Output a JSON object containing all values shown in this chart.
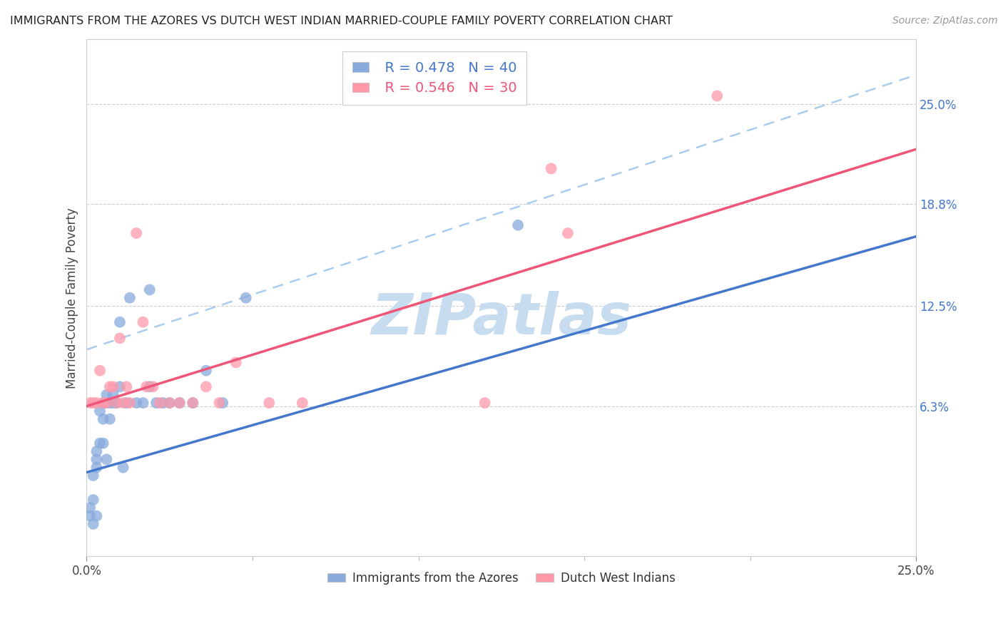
{
  "title": "IMMIGRANTS FROM THE AZORES VS DUTCH WEST INDIAN MARRIED-COUPLE FAMILY POVERTY CORRELATION CHART",
  "source": "Source: ZipAtlas.com",
  "ylabel": "Married-Couple Family Poverty",
  "xlim": [
    0,
    0.25
  ],
  "ylim": [
    -0.03,
    0.29
  ],
  "yticks": [
    0.063,
    0.125,
    0.188,
    0.25
  ],
  "ytick_labels": [
    "6.3%",
    "12.5%",
    "18.8%",
    "25.0%"
  ],
  "xtick_vals": [
    0.0,
    0.25
  ],
  "xtick_minor_vals": [
    0.05,
    0.1,
    0.15,
    0.2
  ],
  "xtick_labels": [
    "0.0%",
    "25.0%"
  ],
  "legend_blue_r": "R = 0.478",
  "legend_blue_n": "N = 40",
  "legend_pink_r": "R = 0.546",
  "legend_pink_n": "N = 30",
  "blue_scatter_color": "#88AADD",
  "pink_scatter_color": "#FF99AA",
  "blue_line_color": "#4477CC",
  "pink_line_color": "#EE5577",
  "dash_line_color": "#AACCEE",
  "watermark": "ZIPatlas",
  "watermark_color": "#C8DCF0",
  "blue_line_x0": 0.0,
  "blue_line_y0": 0.022,
  "blue_line_x1": 0.25,
  "blue_line_y1": 0.168,
  "pink_line_x0": 0.0,
  "pink_line_y0": 0.063,
  "pink_line_x1": 0.25,
  "pink_line_y1": 0.222,
  "dash_line_x0": 0.0,
  "dash_line_y0": 0.098,
  "dash_line_x1": 0.25,
  "dash_line_y1": 0.268,
  "label1": "Immigrants from the Azores",
  "label2": "Dutch West Indians",
  "blue_x": [
    0.001,
    0.001,
    0.002,
    0.002,
    0.002,
    0.003,
    0.003,
    0.003,
    0.003,
    0.004,
    0.004,
    0.005,
    0.005,
    0.005,
    0.006,
    0.006,
    0.006,
    0.007,
    0.007,
    0.008,
    0.008,
    0.009,
    0.01,
    0.01,
    0.011,
    0.012,
    0.013,
    0.015,
    0.017,
    0.019,
    0.021,
    0.023,
    0.025,
    0.028,
    0.032,
    0.036,
    0.041,
    0.048,
    0.13,
    0.019
  ],
  "blue_y": [
    -0.005,
    0.0,
    0.005,
    -0.01,
    0.02,
    0.025,
    0.03,
    0.035,
    -0.005,
    0.04,
    0.06,
    0.055,
    0.065,
    0.04,
    0.065,
    0.07,
    0.03,
    0.055,
    0.065,
    0.07,
    0.065,
    0.065,
    0.075,
    0.115,
    0.025,
    0.065,
    0.13,
    0.065,
    0.065,
    0.075,
    0.065,
    0.065,
    0.065,
    0.065,
    0.065,
    0.085,
    0.065,
    0.13,
    0.175,
    0.135
  ],
  "pink_x": [
    0.001,
    0.002,
    0.003,
    0.004,
    0.005,
    0.006,
    0.007,
    0.008,
    0.009,
    0.01,
    0.011,
    0.012,
    0.013,
    0.015,
    0.017,
    0.018,
    0.02,
    0.022,
    0.025,
    0.028,
    0.032,
    0.036,
    0.04,
    0.045,
    0.055,
    0.065,
    0.12,
    0.14,
    0.145,
    0.19
  ],
  "pink_y": [
    0.065,
    0.065,
    0.065,
    0.085,
    0.065,
    0.065,
    0.075,
    0.075,
    0.065,
    0.105,
    0.065,
    0.075,
    0.065,
    0.17,
    0.115,
    0.075,
    0.075,
    0.065,
    0.065,
    0.065,
    0.065,
    0.075,
    0.065,
    0.09,
    0.065,
    0.065,
    0.065,
    0.21,
    0.17,
    0.255
  ]
}
